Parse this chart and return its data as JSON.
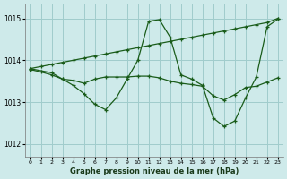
{
  "title": "Graphe pression niveau de la mer (hPa)",
  "background_color": "#ceeaea",
  "grid_color": "#a0cccc",
  "line_color": "#1a5c1a",
  "xlim": [
    -0.5,
    23.5
  ],
  "ylim": [
    1011.7,
    1015.35
  ],
  "yticks": [
    1012,
    1013,
    1014,
    1015
  ],
  "xticks": [
    0,
    1,
    2,
    3,
    4,
    5,
    6,
    7,
    8,
    9,
    10,
    11,
    12,
    13,
    14,
    15,
    16,
    17,
    18,
    19,
    20,
    21,
    22,
    23
  ],
  "series": [
    {
      "x": [
        0,
        1,
        2,
        3,
        4,
        5,
        6,
        7,
        8,
        9,
        10,
        11,
        12,
        13,
        14,
        15,
        16,
        17,
        18,
        19,
        20,
        21,
        22,
        23
      ],
      "y": [
        1013.8,
        1013.85,
        1013.9,
        1013.95,
        1014.0,
        1014.05,
        1014.1,
        1014.15,
        1014.2,
        1014.25,
        1014.3,
        1014.35,
        1014.4,
        1014.45,
        1014.5,
        1014.55,
        1014.6,
        1014.65,
        1014.7,
        1014.75,
        1014.8,
        1014.85,
        1014.9,
        1015.0
      ]
    },
    {
      "x": [
        0,
        2,
        3,
        4,
        5,
        6,
        7,
        8,
        9,
        10,
        11,
        12,
        13,
        14,
        15,
        16,
        17,
        18,
        19,
        20,
        21,
        22,
        23
      ],
      "y": [
        1013.8,
        1013.7,
        1013.55,
        1013.4,
        1013.2,
        1012.95,
        1012.82,
        1013.1,
        1013.55,
        1014.0,
        1014.93,
        1014.97,
        1014.55,
        1013.65,
        1013.55,
        1013.4,
        1012.62,
        1012.42,
        1012.55,
        1013.1,
        1013.6,
        1014.8,
        1014.98
      ]
    },
    {
      "x": [
        0,
        1,
        2,
        3,
        4,
        5,
        6,
        7,
        8,
        9,
        10,
        11,
        12,
        13,
        14,
        15,
        16,
        17,
        18,
        19,
        20,
        21,
        22,
        23
      ],
      "y": [
        1013.78,
        1013.72,
        1013.65,
        1013.55,
        1013.52,
        1013.45,
        1013.55,
        1013.6,
        1013.6,
        1013.6,
        1013.62,
        1013.62,
        1013.58,
        1013.5,
        1013.45,
        1013.42,
        1013.38,
        1013.15,
        1013.05,
        1013.18,
        1013.35,
        1013.38,
        1013.48,
        1013.58
      ]
    }
  ]
}
